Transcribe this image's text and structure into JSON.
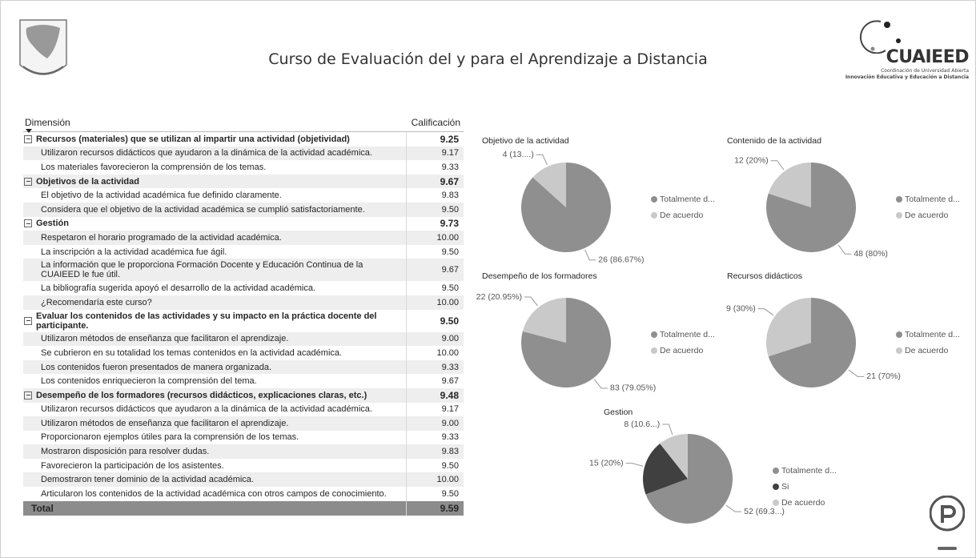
{
  "header": {
    "title": "Curso de Evaluación del y para el Aprendizaje a Distancia",
    "logo_text": "CUAIEED",
    "logo_line1": "Coordinación de Universidad Abierta",
    "logo_line2": "Innovación Educativa y Educación a Distancia"
  },
  "table": {
    "headers": [
      "Dimensión",
      "Calificación"
    ],
    "groups": [
      {
        "label": "Recursos (materiales) que se utilizan al impartir una actividad (objetividad)",
        "score": "9.25",
        "items": [
          {
            "label": "Utilizaron recursos didácticos que ayudaron a la dinámica de la actividad académica.",
            "score": "9.17"
          },
          {
            "label": "Los materiales favorecieron la comprensión de los temas.",
            "score": "9.33"
          }
        ]
      },
      {
        "label": "Objetivos de la actividad",
        "score": "9.67",
        "items": [
          {
            "label": "El objetivo de la actividad académica fue definido claramente.",
            "score": "9.83"
          },
          {
            "label": "Considera que el objetivo de la actividad académica se cumplió satisfactoriamente.",
            "score": "9.50"
          }
        ]
      },
      {
        "label": "Gestión",
        "score": "9.73",
        "items": [
          {
            "label": "Respetaron el horario programado de la actividad académica.",
            "score": "10.00"
          },
          {
            "label": "La inscripción a la actividad académica fue ágil.",
            "score": "9.50"
          },
          {
            "label": "La información que le proporciona Formación Docente y Educación Continua de la CUAIEED le fue útil.",
            "score": "9.67"
          },
          {
            "label": "La bibliografía sugerida apoyó el desarrollo de la actividad académica.",
            "score": "9.50"
          },
          {
            "label": "¿Recomendaría este curso?",
            "score": "10.00"
          }
        ]
      },
      {
        "label": "Evaluar los contenidos de las actividades y su impacto en la práctica docente del participante.",
        "score": "9.50",
        "items": [
          {
            "label": "Utilizaron métodos de enseñanza que facilitaron el aprendizaje.",
            "score": "9.00"
          },
          {
            "label": "Se cubrieron en su totalidad los temas contenidos en la actividad académica.",
            "score": "10.00"
          },
          {
            "label": "Los contenidos fueron presentados de manera organizada.",
            "score": "9.33"
          },
          {
            "label": "Los contenidos enriquecieron la comprensión del tema.",
            "score": "9.67"
          }
        ]
      },
      {
        "label": "Desempeño de los formadores (recursos didácticos, explicaciones claras, etc.)",
        "score": "9.48",
        "items": [
          {
            "label": "Utilizaron recursos didácticos que ayudaron a la dinámica de la actividad académica.",
            "score": "9.17"
          },
          {
            "label": "Utilizaron métodos de enseñanza que facilitaron el aprendizaje.",
            "score": "9.00"
          },
          {
            "label": "Proporcionaron ejemplos útiles para la comprensión de los temas.",
            "score": "9.33"
          },
          {
            "label": "Mostraron disposición para resolver dudas.",
            "score": "9.83"
          },
          {
            "label": "Favorecieron la participación de los asistentes.",
            "score": "9.50"
          },
          {
            "label": "Demostraron tener dominio de la actividad académica.",
            "score": "10.00"
          },
          {
            "label": "Articularon los contenidos de la actividad académica con otros campos de conocimiento.",
            "score": "9.50"
          }
        ]
      }
    ],
    "total": {
      "label": "Total",
      "score": "9.59"
    }
  },
  "chart_data": [
    {
      "type": "pie",
      "title": "Objetivo de la actividad",
      "categories": [
        "Totalmente d...",
        "De acuerdo"
      ],
      "values": [
        26,
        4
      ],
      "value_labels": [
        "26 (86.67%)",
        "4 (13....)"
      ],
      "colors": [
        "#8f8f8f",
        "#c9c9c9"
      ]
    },
    {
      "type": "pie",
      "title": "Contenido de la actividad",
      "categories": [
        "Totalmente d...",
        "De acuerdo"
      ],
      "values": [
        48,
        12
      ],
      "value_labels": [
        "48 (80%)",
        "12 (20%)"
      ],
      "colors": [
        "#8f8f8f",
        "#c9c9c9"
      ]
    },
    {
      "type": "pie",
      "title": "Desempeño de los formadores",
      "categories": [
        "Totalmente d...",
        "De acuerdo"
      ],
      "values": [
        83,
        22
      ],
      "value_labels": [
        "83 (79.05%)",
        "22 (20.95%)"
      ],
      "colors": [
        "#8f8f8f",
        "#c9c9c9"
      ]
    },
    {
      "type": "pie",
      "title": "Recursos didácticos",
      "categories": [
        "Totalmente d...",
        "De acuerdo"
      ],
      "values": [
        21,
        9
      ],
      "value_labels": [
        "21 (70%)",
        "9 (30%)"
      ],
      "colors": [
        "#8f8f8f",
        "#c9c9c9"
      ]
    },
    {
      "type": "pie",
      "title": "Gestion",
      "categories": [
        "Totalmente d...",
        "Si",
        "De acuerdo"
      ],
      "values": [
        52,
        15,
        8
      ],
      "value_labels": [
        "52 (69.3...)",
        "15 (20%)",
        "8 (10.6...)"
      ],
      "colors": [
        "#8f8f8f",
        "#404040",
        "#c9c9c9"
      ]
    }
  ]
}
